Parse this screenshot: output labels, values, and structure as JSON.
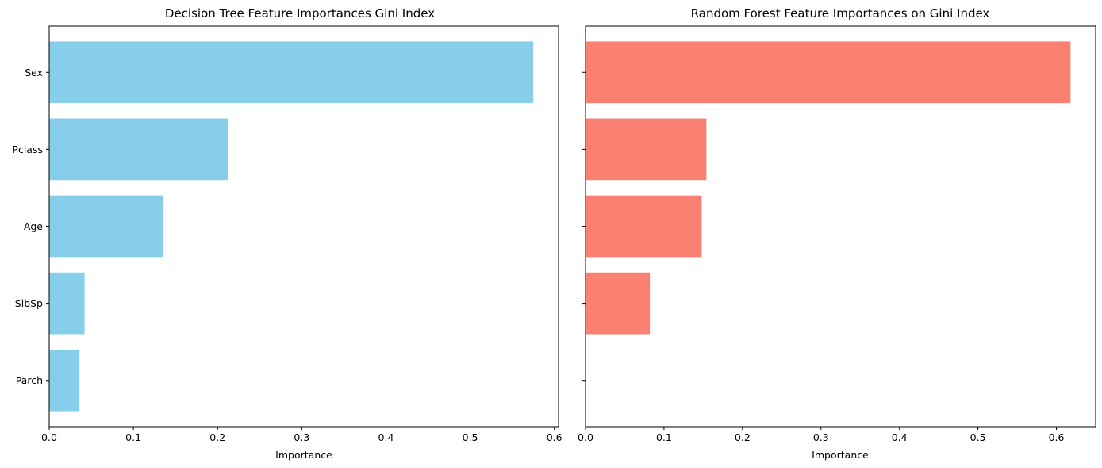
{
  "chart_data": [
    {
      "type": "bar",
      "orientation": "horizontal",
      "title": "Decision Tree Feature Importances Gini Index",
      "xlabel": "Importance",
      "ylabel": "",
      "categories": [
        "Sex",
        "Pclass",
        "Age",
        "SibSp",
        "Parch"
      ],
      "values": [
        0.575,
        0.212,
        0.135,
        0.042,
        0.036
      ],
      "xlim": [
        0,
        0.605
      ],
      "xticks": [
        "0.0",
        "0.1",
        "0.2",
        "0.3",
        "0.4",
        "0.5",
        "0.6"
      ],
      "color": "#87ceeb",
      "grid": false
    },
    {
      "type": "bar",
      "orientation": "horizontal",
      "title": "Random Forest Feature Importances on Gini Index",
      "xlabel": "Importance",
      "ylabel": "",
      "categories": [
        "Sex",
        "Pclass",
        "Age",
        "SibSp",
        "Parch"
      ],
      "values": [
        0.618,
        0.154,
        0.148,
        0.082,
        0.0
      ],
      "xlim": [
        0,
        0.65
      ],
      "xticks": [
        "0.0",
        "0.1",
        "0.2",
        "0.3",
        "0.4",
        "0.5",
        "0.6"
      ],
      "color": "#fa8072",
      "grid": false
    }
  ]
}
